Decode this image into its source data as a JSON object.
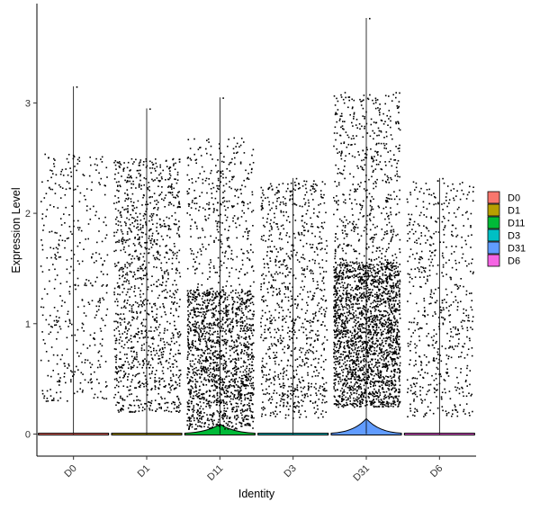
{
  "chart_data": {
    "type": "violin",
    "title": "",
    "xlabel": "Identity",
    "ylabel": "Expression Level",
    "ylim": [
      -0.2,
      3.9
    ],
    "yticks": [
      0,
      1,
      2,
      3
    ],
    "grid": false,
    "legend_position": "right",
    "categories": [
      "D0",
      "D1",
      "D11",
      "D3",
      "D31",
      "D6"
    ],
    "series": [
      {
        "name": "D0",
        "color": "#F8766D",
        "max": 3.15,
        "jitter_range": [
          0.3,
          2.55
        ],
        "point_count": 420,
        "violin_peak_height": 0.0
      },
      {
        "name": "D1",
        "color": "#B79F00",
        "max": 2.95,
        "jitter_range": [
          0.2,
          2.5
        ],
        "point_count": 1200,
        "violin_peak_height": 0.0
      },
      {
        "name": "D11",
        "color": "#00BA38",
        "max": 3.05,
        "jitter_range": [
          0.05,
          2.7
        ],
        "point_count": 1900,
        "violin_peak_height": 0.09
      },
      {
        "name": "D3",
        "color": "#00BFC4",
        "max": 2.32,
        "jitter_range": [
          0.15,
          2.3
        ],
        "point_count": 900,
        "violin_peak_height": 0.0
      },
      {
        "name": "D31",
        "color": "#619CFF",
        "max": 3.77,
        "jitter_range": [
          0.25,
          3.1
        ],
        "point_count": 2700,
        "violin_peak_height": 0.14
      },
      {
        "name": "D6",
        "color": "#F564E3",
        "max": 2.32,
        "jitter_range": [
          0.15,
          2.3
        ],
        "point_count": 600,
        "violin_peak_height": 0.0
      }
    ]
  }
}
